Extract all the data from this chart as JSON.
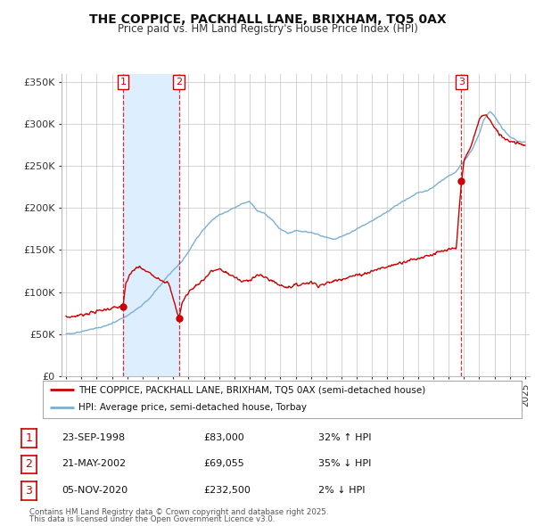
{
  "title": "THE COPPICE, PACKHALL LANE, BRIXHAM, TQ5 0AX",
  "subtitle": "Price paid vs. HM Land Registry's House Price Index (HPI)",
  "legend_property": "THE COPPICE, PACKHALL LANE, BRIXHAM, TQ5 0AX (semi-detached house)",
  "legend_hpi": "HPI: Average price, semi-detached house, Torbay",
  "transactions": [
    {
      "num": 1,
      "date": "23-SEP-1998",
      "year": 1998.73,
      "price": 83000,
      "pct": "32% ↑ HPI"
    },
    {
      "num": 2,
      "date": "21-MAY-2002",
      "year": 2002.38,
      "price": 69055,
      "pct": "35% ↓ HPI"
    },
    {
      "num": 3,
      "date": "05-NOV-2020",
      "year": 2020.84,
      "price": 232500,
      "pct": "2% ↓ HPI"
    }
  ],
  "footer1": "Contains HM Land Registry data © Crown copyright and database right 2025.",
  "footer2": "This data is licensed under the Open Government Licence v3.0.",
  "property_color": "#cc0000",
  "hpi_color": "#7bafd4",
  "shade_color": "#ddeeff",
  "background_color": "#ffffff",
  "grid_color": "#cccccc",
  "ylim": [
    0,
    360000
  ],
  "xlim_start": 1994.7,
  "xlim_end": 2025.3,
  "yticks": [
    0,
    50000,
    100000,
    150000,
    200000,
    250000,
    300000,
    350000
  ]
}
